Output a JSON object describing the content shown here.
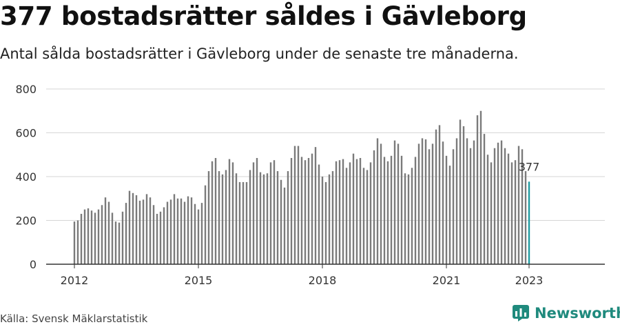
{
  "header": {
    "title": "377 bostadsrätter såldes i Gävleborg",
    "subtitle": "Antal sålda bostadsrätter i Gävleborg under de senaste tre månaderna."
  },
  "footer": {
    "source": "Källa: Svensk Mäklarstatistik",
    "brand": "Newsworthy"
  },
  "colors": {
    "bar": "#7a7a7a",
    "highlight": "#1e9aa0",
    "grid": "#d6d6d6",
    "brand": "#1f8a7d"
  },
  "chart_data": {
    "type": "bar",
    "title": "377 bostadsrätter såldes i Gävleborg",
    "subtitle": "Antal sålda bostadsrätter i Gävleborg under de senaste tre månaderna.",
    "x_start": "2012-01",
    "x_end": "2023-01",
    "x_ticks": [
      "2012",
      "2015",
      "2018",
      "2021",
      "2023"
    ],
    "y_ticks": [
      0,
      200,
      400,
      600,
      800
    ],
    "ylim": [
      0,
      800
    ],
    "grid": true,
    "highlight_label": "377",
    "values": [
      195,
      200,
      230,
      250,
      255,
      245,
      235,
      250,
      270,
      305,
      285,
      235,
      195,
      190,
      240,
      280,
      335,
      325,
      315,
      290,
      295,
      320,
      305,
      270,
      230,
      240,
      260,
      285,
      295,
      320,
      300,
      300,
      285,
      310,
      305,
      275,
      250,
      280,
      360,
      425,
      470,
      485,
      425,
      410,
      430,
      480,
      465,
      415,
      375,
      375,
      375,
      430,
      465,
      485,
      420,
      410,
      415,
      465,
      475,
      425,
      385,
      350,
      425,
      485,
      540,
      540,
      490,
      475,
      485,
      505,
      535,
      455,
      400,
      375,
      410,
      425,
      470,
      475,
      480,
      440,
      465,
      505,
      480,
      485,
      440,
      430,
      465,
      520,
      575,
      550,
      490,
      470,
      495,
      565,
      550,
      495,
      415,
      410,
      440,
      490,
      550,
      575,
      570,
      525,
      550,
      615,
      635,
      560,
      495,
      450,
      525,
      575,
      660,
      630,
      575,
      530,
      565,
      680,
      700,
      595,
      500,
      465,
      530,
      555,
      565,
      530,
      505,
      465,
      475,
      540,
      525,
      425,
      377
    ]
  }
}
